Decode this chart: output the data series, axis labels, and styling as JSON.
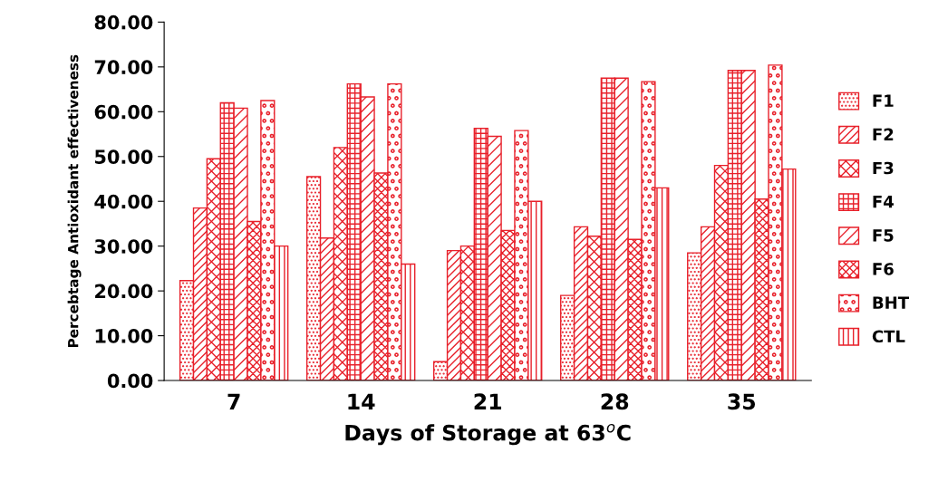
{
  "chart_data": {
    "type": "bar",
    "xlabel": "Days of Storage at 63$^{o}$C",
    "ylabel": "Percebtage Antioxidant effectiveness",
    "categories": [
      "7",
      "14",
      "21",
      "28",
      "35"
    ],
    "series": [
      {
        "name": "F1",
        "color": "#e8202a",
        "values": [
          22.3,
          45.5,
          4.2,
          19.0,
          28.5
        ]
      },
      {
        "name": "F2",
        "color": "#e8202a",
        "values": [
          38.5,
          31.8,
          29.0,
          34.3,
          34.3
        ]
      },
      {
        "name": "F3",
        "color": "#e8202a",
        "values": [
          49.5,
          52.0,
          30.0,
          32.2,
          48.0
        ]
      },
      {
        "name": "F4",
        "color": "#e8202a",
        "values": [
          62.0,
          66.2,
          56.3,
          67.5,
          69.2
        ]
      },
      {
        "name": "F5",
        "color": "#e8202a",
        "values": [
          60.8,
          63.3,
          54.5,
          67.5,
          69.2
        ]
      },
      {
        "name": "F6",
        "color": "#e8202a",
        "values": [
          35.5,
          46.3,
          33.5,
          31.5,
          40.5
        ]
      },
      {
        "name": "BHT",
        "color": "#e8202a",
        "values": [
          62.5,
          66.2,
          55.8,
          66.7,
          70.4
        ]
      },
      {
        "name": "CTL",
        "color": "#e8202a",
        "values": [
          30.0,
          26.0,
          40.0,
          43.0,
          47.2
        ]
      }
    ],
    "ylim": [
      0,
      80
    ],
    "yticks": [
      {
        "value": 0,
        "label": "0.00"
      },
      {
        "value": 10,
        "label": "10.00"
      },
      {
        "value": 20,
        "label": "20.00"
      },
      {
        "value": 30,
        "label": "30.00"
      },
      {
        "value": 40,
        "label": "40.00"
      },
      {
        "value": 50,
        "label": "50.00"
      },
      {
        "value": 60,
        "label": "60.00"
      },
      {
        "value": 70,
        "label": "70.00"
      },
      {
        "value": 80,
        "label": "80.00"
      }
    ],
    "grid": false,
    "legend": "right"
  }
}
